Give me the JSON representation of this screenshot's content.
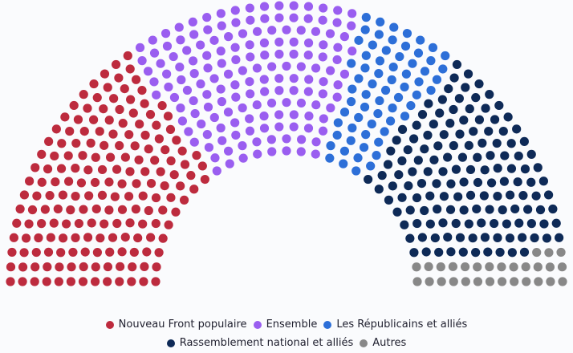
{
  "chart_data": {
    "type": "parliament",
    "total_seats": 577,
    "series": [
      {
        "name": "Nouveau Front populaire",
        "seats": 180,
        "color": "#bd2b3e"
      },
      {
        "name": "Ensemble",
        "seats": 159,
        "color": "#9a5ef0"
      },
      {
        "name": "Les Républicains et alliés",
        "seats": 66,
        "color": "#2d6fd8"
      },
      {
        "name": "Rassemblement national et alliés",
        "seats": 143,
        "color": "#0e2a57"
      },
      {
        "name": "Autres",
        "seats": 29,
        "color": "#888888"
      }
    ],
    "legend_position": "bottom"
  },
  "legend": {
    "items": [
      {
        "label": "Nouveau Front populaire",
        "color": "#bd2b3e"
      },
      {
        "label": "Ensemble",
        "color": "#9a5ef0"
      },
      {
        "label": "Les Républicains et alliés",
        "color": "#2d6fd8"
      },
      {
        "label": "Rassemblement national et alliés",
        "color": "#0e2a57"
      },
      {
        "label": "Autres",
        "color": "#888888"
      }
    ]
  }
}
